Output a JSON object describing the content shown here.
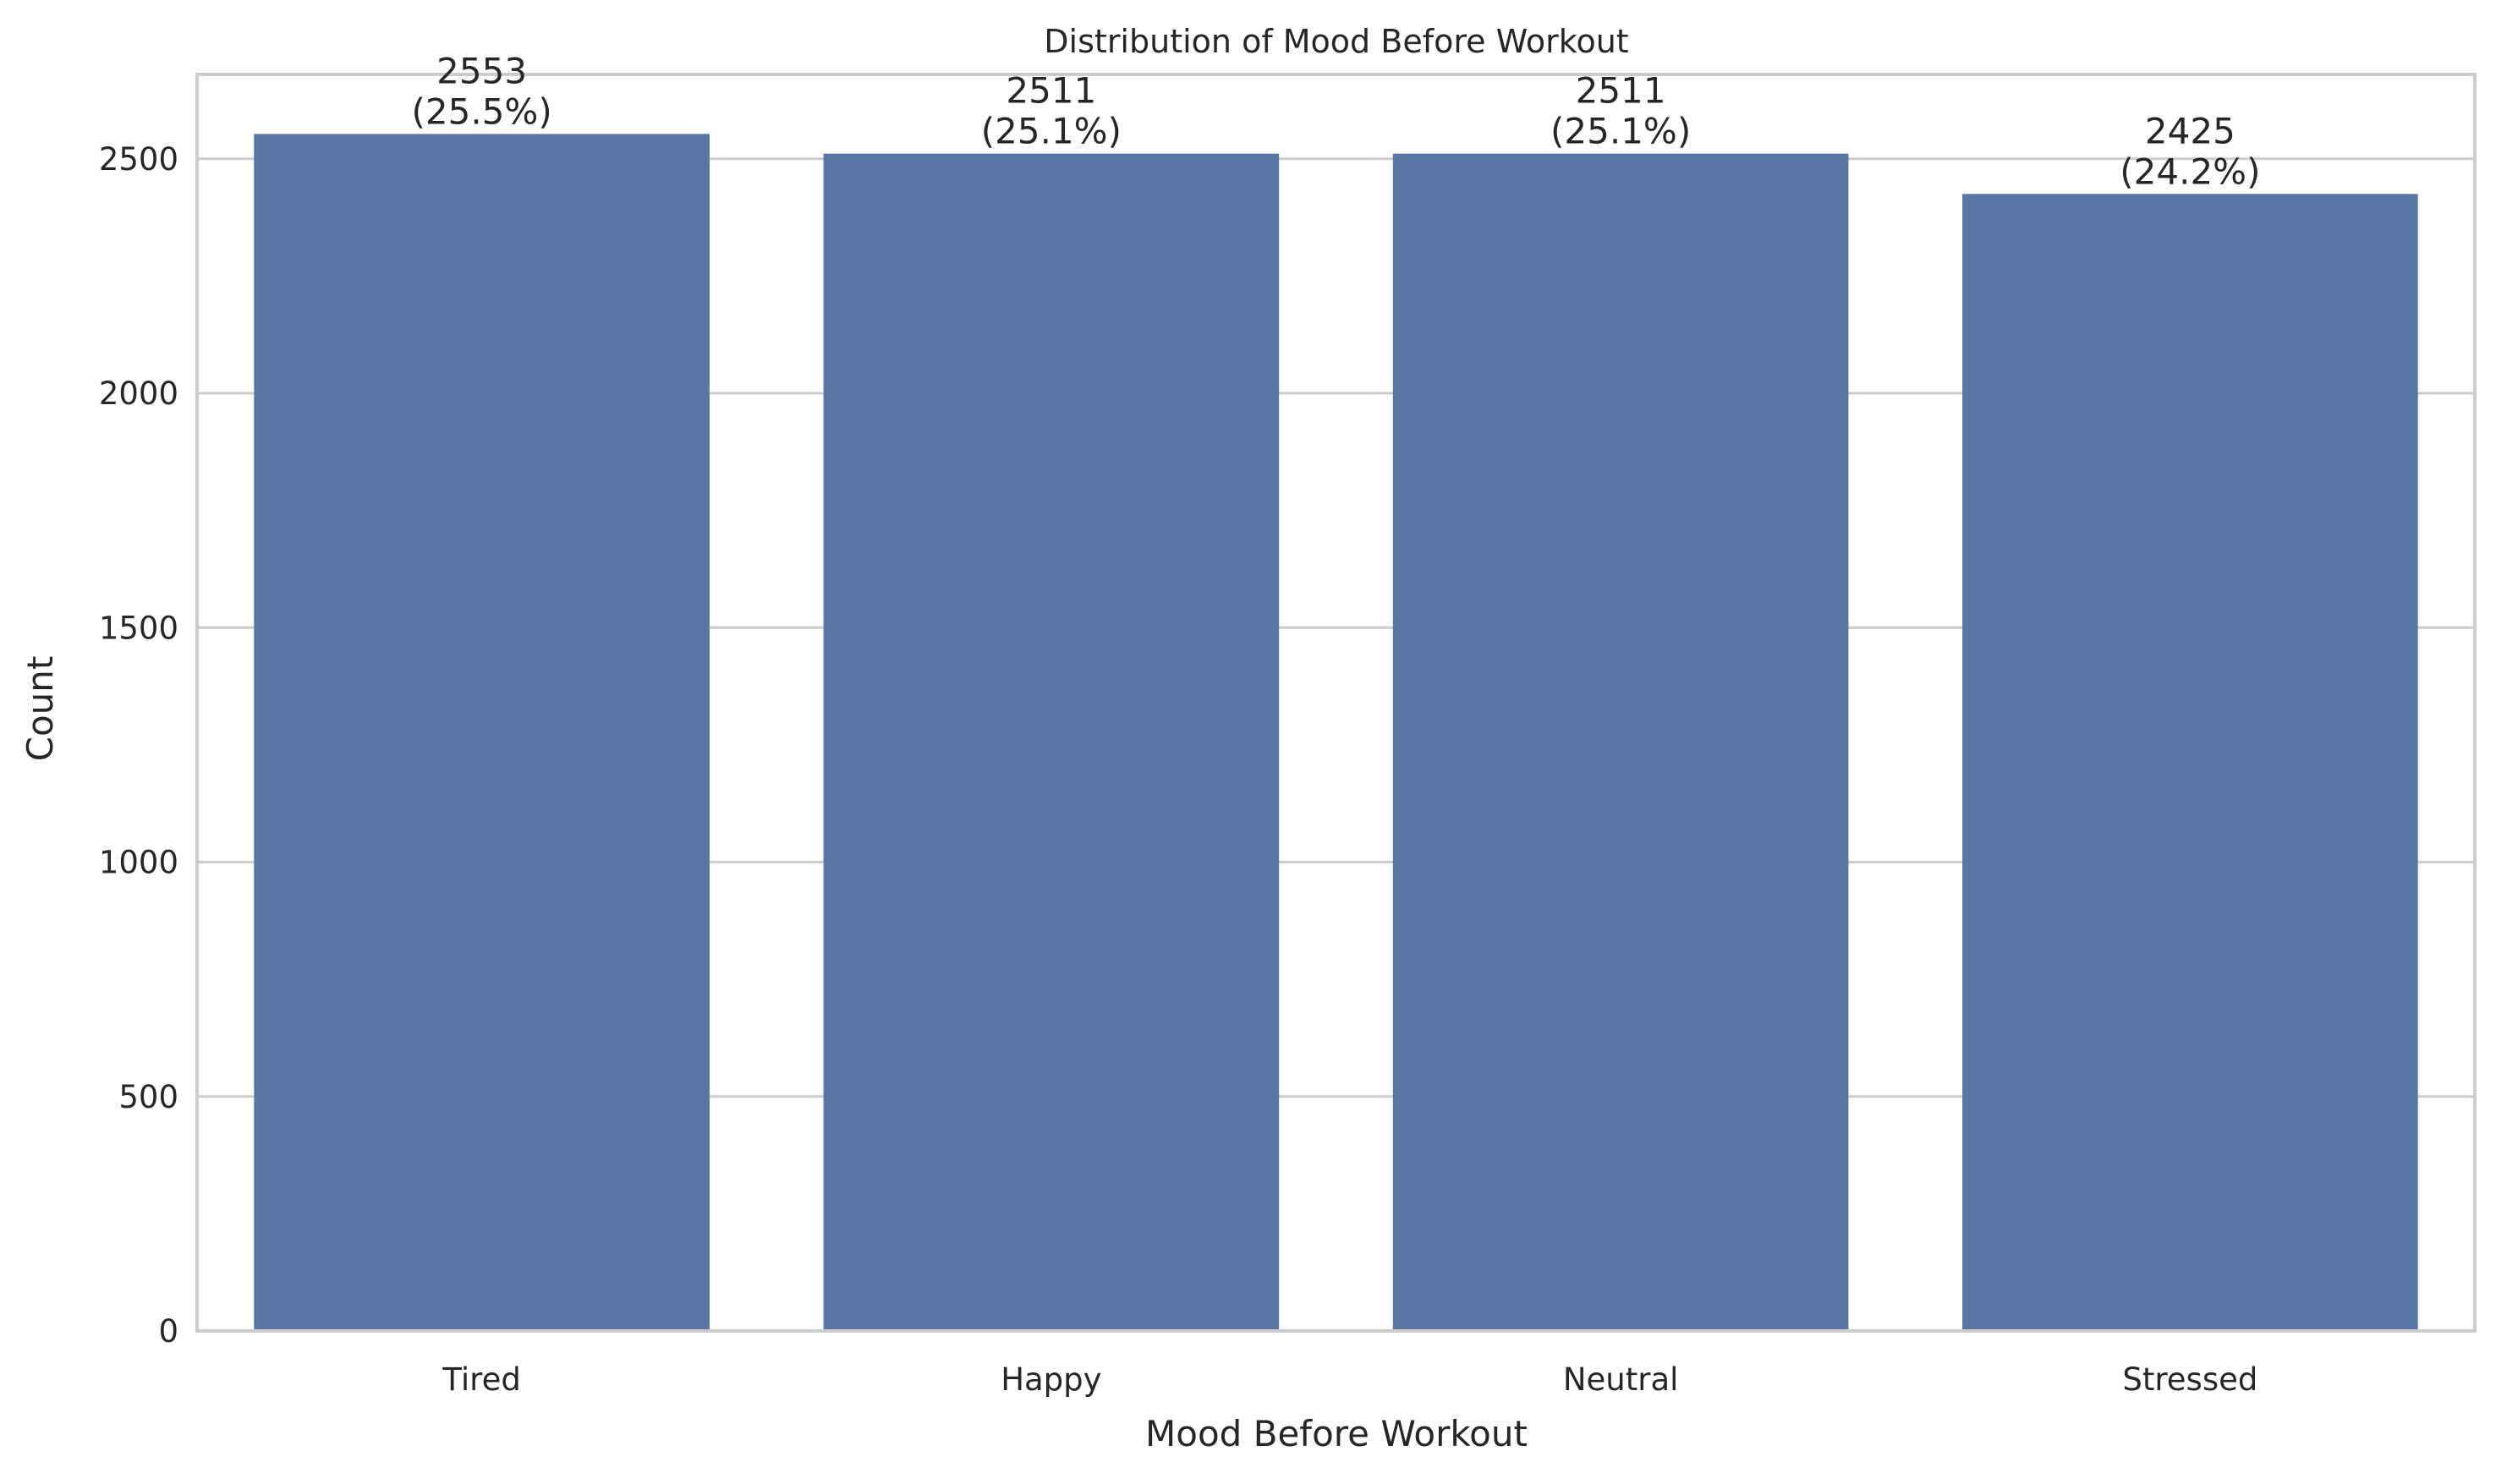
{
  "chart_data": {
    "type": "bar",
    "title": "Distribution of Mood Before Workout",
    "xlabel": "Mood Before Workout",
    "ylabel": "Count",
    "categories": [
      "Tired",
      "Happy",
      "Neutral",
      "Stressed"
    ],
    "values": [
      2553,
      2511,
      2511,
      2425
    ],
    "percent_labels": [
      "(25.5%)",
      "(25.1%)",
      "(25.1%)",
      "(24.2%)"
    ],
    "ylim": [
      0,
      2680
    ],
    "yticks": [
      0,
      500,
      1000,
      1500,
      2000,
      2500
    ],
    "grid": true,
    "grid_axis": "y",
    "legend": "none",
    "colors": {
      "bar": "#5975a4",
      "grid": "#cccccc",
      "spine": "#cccccc",
      "text": "#262626",
      "background": "#ffffff"
    }
  }
}
